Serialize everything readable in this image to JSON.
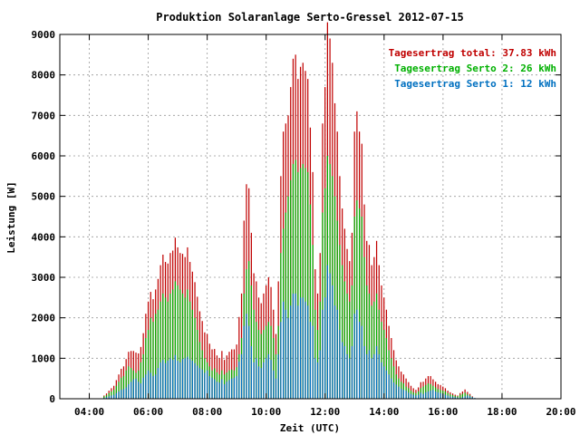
{
  "chart_data": {
    "type": "bar",
    "title": "Produktion Solaranlage Serto-Gressel 2012-07-15",
    "xlabel": "Zeit (UTC)",
    "ylabel": "Leistung [W]",
    "xlim": [
      3,
      20
    ],
    "ylim": [
      0,
      9000
    ],
    "x_ticks": [
      {
        "value": 4,
        "label": "04:00"
      },
      {
        "value": 6,
        "label": "06:00"
      },
      {
        "value": 8,
        "label": "08:00"
      },
      {
        "value": 10,
        "label": "10:00"
      },
      {
        "value": 12,
        "label": "12:00"
      },
      {
        "value": 14,
        "label": "14:00"
      },
      {
        "value": 16,
        "label": "16:00"
      },
      {
        "value": 18,
        "label": "18:00"
      },
      {
        "value": 20,
        "label": "20:00"
      }
    ],
    "y_ticks": [
      {
        "value": 0,
        "label": "0"
      },
      {
        "value": 1000,
        "label": "1000"
      },
      {
        "value": 2000,
        "label": "2000"
      },
      {
        "value": 3000,
        "label": "3000"
      },
      {
        "value": 4000,
        "label": "4000"
      },
      {
        "value": 5000,
        "label": "5000"
      },
      {
        "value": 6000,
        "label": "6000"
      },
      {
        "value": 7000,
        "label": "7000"
      },
      {
        "value": 8000,
        "label": "8000"
      },
      {
        "value": 9000,
        "label": "9000"
      }
    ],
    "grid": true,
    "legend_position": "top-right",
    "legend": [
      {
        "label": "Tagesertrag total: 37.83 kWh",
        "color": "#c00000"
      },
      {
        "label": "Tagesertrag Serto 2: 26 kWh",
        "color": "#00b000"
      },
      {
        "label": "Tagesertrag Serto 1: 12 kWh",
        "color": "#0070c0"
      }
    ],
    "colors": {
      "total": "#c00000",
      "serto2": "#00b000",
      "serto1": "#0070c0"
    },
    "x_start": 4.5,
    "x_step": 0.0833,
    "series": [
      {
        "name": "Tagesertrag Serto 1: 12 kWh",
        "values": [
          20,
          40,
          60,
          80,
          100,
          140,
          180,
          220,
          240,
          280,
          360,
          420,
          480,
          500,
          420,
          380,
          520,
          600,
          700,
          640,
          560,
          600,
          760,
          900,
          960,
          880,
          940,
          1000,
          960,
          1080,
          940,
          900,
          980,
          1000,
          1040,
          980,
          940,
          880,
          820,
          760,
          720,
          640,
          700,
          560,
          520,
          480,
          420,
          400,
          480,
          360,
          420,
          460,
          500,
          520,
          560,
          920,
          1100,
          1800,
          2100,
          1800,
          1300,
          900,
          1000,
          800,
          760,
          900,
          1000,
          1100,
          960,
          700,
          500,
          1100,
          1900,
          2400,
          2200,
          2000,
          2300,
          2600,
          2600,
          2300,
          2500,
          2500,
          2400,
          2300,
          1900,
          1800,
          1000,
          900,
          1200,
          2200,
          2500,
          3300,
          3100,
          2800,
          2300,
          2200,
          1700,
          1400,
          1300,
          1100,
          1000,
          1300,
          2100,
          2200,
          1900,
          1800,
          1300,
          1100,
          1200,
          1000,
          1100,
          1300,
          1100,
          900,
          800,
          700,
          600,
          500,
          400,
          350,
          300,
          250,
          220,
          200,
          150,
          120,
          100,
          80,
          100,
          150,
          120,
          160,
          180,
          200,
          220,
          180,
          160,
          140,
          120,
          100,
          80,
          60,
          50,
          40,
          30,
          20,
          40,
          60,
          80,
          60,
          40,
          20
        ]
      },
      {
        "name": "Tagesertrag Serto 2: 26 kWh",
        "values": [
          60,
          90,
          140,
          180,
          220,
          320,
          420,
          520,
          560,
          700,
          800,
          760,
          700,
          640,
          700,
          900,
          1100,
          1500,
          1700,
          2000,
          1900,
          2100,
          2200,
          2400,
          2600,
          2500,
          2400,
          2600,
          2700,
          2900,
          2800,
          2700,
          2600,
          2500,
          2700,
          2400,
          2200,
          2000,
          1700,
          1400,
          1200,
          1000,
          900,
          800,
          700,
          750,
          650,
          600,
          700,
          600,
          650,
          700,
          720,
          700,
          780,
          1100,
          1500,
          2600,
          3200,
          3400,
          2800,
          2200,
          1900,
          1700,
          1600,
          1700,
          1800,
          1900,
          1800,
          1500,
          1100,
          1800,
          3600,
          4200,
          4600,
          5000,
          5400,
          5800,
          5900,
          5600,
          5700,
          5800,
          5700,
          5600,
          4800,
          3800,
          2200,
          1700,
          2400,
          4600,
          5200,
          6000,
          5800,
          5500,
          5000,
          4400,
          3800,
          3300,
          2900,
          2600,
          2400,
          2800,
          4500,
          4900,
          4700,
          4500,
          3500,
          2800,
          2600,
          2300,
          2400,
          2600,
          2200,
          1900,
          1700,
          1500,
          1200,
          1000,
          800,
          600,
          500,
          420,
          380,
          300,
          260,
          200,
          160,
          140,
          180,
          260,
          300,
          340,
          380,
          360,
          320,
          280,
          240,
          220,
          200,
          180,
          140,
          110,
          90,
          70,
          60,
          100,
          120,
          150,
          110,
          80,
          40
        ]
      },
      {
        "name": "Tagesertrag total: 37.83 kWh",
        "values": [
          80,
          130,
          200,
          260,
          320,
          460,
          600,
          740,
          800,
          980,
          1160,
          1180,
          1180,
          1140,
          1120,
          1280,
          1620,
          2100,
          2400,
          2640,
          2460,
          2700,
          2960,
          3300,
          3560,
          3380,
          3340,
          3600,
          3660,
          3980,
          3740,
          3600,
          3580,
          3500,
          3740,
          3380,
          3140,
          2880,
          2520,
          2160,
          1920,
          1640,
          1600,
          1360,
          1220,
          1230,
          1070,
          1000,
          1180,
          960,
          1070,
          1160,
          1220,
          1220,
          1340,
          2020,
          2600,
          4400,
          5300,
          5200,
          4100,
          3100,
          2900,
          2500,
          2360,
          2600,
          2800,
          3000,
          2760,
          2200,
          1600,
          2900,
          5500,
          6600,
          6800,
          7000,
          7700,
          8400,
          8500,
          7900,
          8200,
          8300,
          8100,
          7900,
          6700,
          5600,
          3200,
          2600,
          3600,
          6800,
          7700,
          9300,
          8900,
          8300,
          7300,
          6600,
          5500,
          4700,
          4200,
          3700,
          3400,
          4100,
          6600,
          7100,
          6600,
          6300,
          4800,
          3900,
          3800,
          3300,
          3500,
          3900,
          3300,
          2800,
          2500,
          2200,
          1800,
          1500,
          1200,
          950,
          800,
          670,
          600,
          500,
          410,
          320,
          260,
          220,
          280,
          410,
          420,
          500,
          560,
          560,
          480,
          420,
          360,
          340,
          300,
          260,
          200,
          160,
          130,
          100,
          80,
          140,
          180,
          230,
          170,
          120,
          60
        ]
      }
    ]
  }
}
